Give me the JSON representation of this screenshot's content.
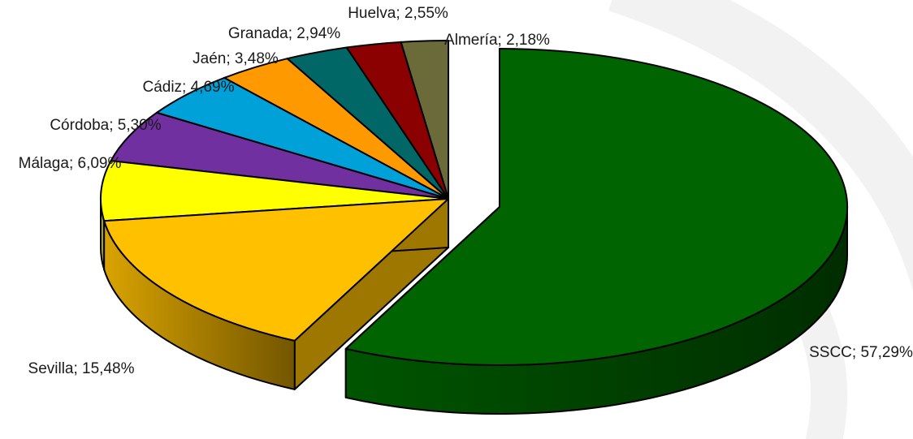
{
  "chart_data": {
    "type": "pie",
    "title": "",
    "categories": [
      "SSCC",
      "Sevilla",
      "Málaga",
      "Córdoba",
      "Cádiz",
      "Jaén",
      "Granada",
      "Huelva",
      "Almería"
    ],
    "values": [
      57.29,
      15.48,
      6.09,
      5.3,
      4.69,
      3.48,
      2.94,
      2.55,
      2.18
    ],
    "labels": [
      "SSCC; 57,29%",
      "Sevilla; 15,48%",
      "Málaga; 6,09%",
      "Córdoba; 5,30%",
      "Cádiz; 4,69%",
      "Jaén; 3,48%",
      "Granada; 2,94%",
      "Huelva; 2,55%",
      "Almería; 2,18%"
    ],
    "colors": [
      "#006400",
      "#FFC000",
      "#FFFF00",
      "#7030A0",
      "#00A0D8",
      "#FF9900",
      "#006666",
      "#8B0000",
      "#6B6B3A"
    ],
    "style": "3d-exploded",
    "legend": "none"
  }
}
